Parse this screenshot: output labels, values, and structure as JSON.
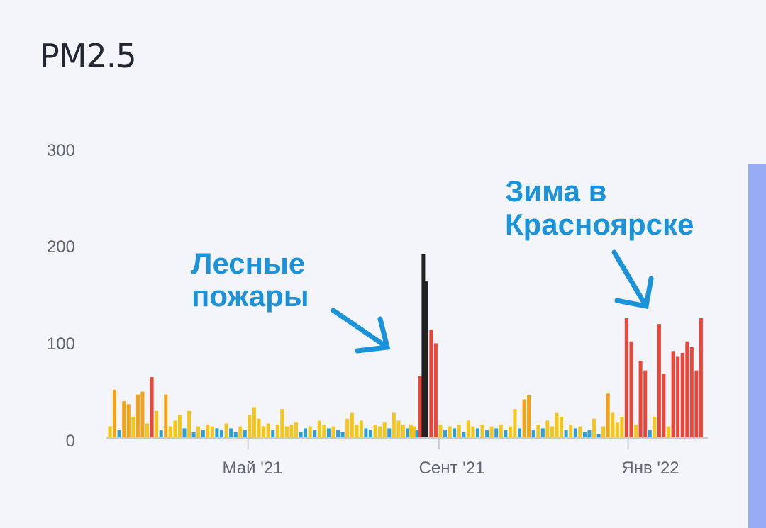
{
  "title": "PM2.5",
  "colors": {
    "good": "#2a9fd8",
    "moderate": "#f5c518",
    "sensitive": "#f5a312",
    "unhealthy": "#ef4438",
    "hazardous": "#222222",
    "annotation": "#1a93da",
    "axis": "#c6cad3",
    "tick_text": "#606570",
    "side_bar": "#98acf6"
  },
  "annotations": [
    {
      "lines": [
        "Лесные",
        "пожары"
      ]
    },
    {
      "lines": [
        "Зима в",
        "Красноярске"
      ]
    }
  ],
  "chart_data": {
    "type": "bar",
    "title": "PM2.5",
    "xlabel": "",
    "ylabel": "",
    "ylim": [
      0,
      300
    ],
    "yticks": [
      0,
      100,
      200,
      300
    ],
    "xticks": [
      "Май '21",
      "Сент '21",
      "Янв '22"
    ],
    "x_range": [
      "2021-02-01",
      "2022-02-20"
    ],
    "xtick_dates": [
      "2021-05-01",
      "2021-09-01",
      "2022-01-01"
    ],
    "grid": false,
    "legend": "none",
    "series": [
      {
        "x": [
          "2021-02-01",
          "2021-02-04",
          "2021-02-07",
          "2021-02-10",
          "2021-02-13",
          "2021-02-16",
          "2021-02-19",
          "2021-02-22",
          "2021-02-25",
          "2021-02-28",
          "2021-03-03",
          "2021-03-06",
          "2021-03-09",
          "2021-03-12",
          "2021-03-15",
          "2021-03-18",
          "2021-03-21",
          "2021-03-24",
          "2021-03-27",
          "2021-03-30",
          "2021-04-02",
          "2021-04-05",
          "2021-04-08",
          "2021-04-11",
          "2021-04-14",
          "2021-04-17",
          "2021-04-20",
          "2021-04-23",
          "2021-04-26",
          "2021-04-29",
          "2021-05-02",
          "2021-05-05",
          "2021-05-08",
          "2021-05-11",
          "2021-05-14",
          "2021-05-17",
          "2021-05-20",
          "2021-05-23",
          "2021-05-26",
          "2021-05-29",
          "2021-06-01",
          "2021-06-04",
          "2021-06-07",
          "2021-06-10",
          "2021-06-13",
          "2021-06-16",
          "2021-06-19",
          "2021-06-22",
          "2021-06-25",
          "2021-06-28",
          "2021-07-01",
          "2021-07-04",
          "2021-07-07",
          "2021-07-10",
          "2021-07-13",
          "2021-07-16",
          "2021-07-19",
          "2021-07-22",
          "2021-07-25",
          "2021-07-28",
          "2021-07-31",
          "2021-08-03",
          "2021-08-06",
          "2021-08-09",
          "2021-08-12",
          "2021-08-14",
          "2021-08-16",
          "2021-08-18",
          "2021-08-20",
          "2021-08-22",
          "2021-08-24",
          "2021-08-27",
          "2021-08-30",
          "2021-09-02",
          "2021-09-05",
          "2021-09-08",
          "2021-09-11",
          "2021-09-14",
          "2021-09-17",
          "2021-09-20",
          "2021-09-23",
          "2021-09-26",
          "2021-09-29",
          "2021-10-02",
          "2021-10-05",
          "2021-10-08",
          "2021-10-11",
          "2021-10-14",
          "2021-10-17",
          "2021-10-20",
          "2021-10-23",
          "2021-10-26",
          "2021-10-29",
          "2021-11-01",
          "2021-11-04",
          "2021-11-07",
          "2021-11-10",
          "2021-11-13",
          "2021-11-16",
          "2021-11-19",
          "2021-11-22",
          "2021-11-25",
          "2021-11-28",
          "2021-12-01",
          "2021-12-04",
          "2021-12-07",
          "2021-12-10",
          "2021-12-13",
          "2021-12-16",
          "2021-12-19",
          "2021-12-22",
          "2021-12-25",
          "2021-12-28",
          "2021-12-31",
          "2022-01-03",
          "2022-01-06",
          "2022-01-09",
          "2022-01-12",
          "2022-01-15",
          "2022-01-18",
          "2022-01-21",
          "2022-01-24",
          "2022-01-27",
          "2022-01-30",
          "2022-02-02",
          "2022-02-05",
          "2022-02-08",
          "2022-02-11",
          "2022-02-14",
          "2022-02-17"
        ],
        "values": [
          12,
          50,
          8,
          38,
          35,
          22,
          45,
          48,
          15,
          63,
          28,
          8,
          45,
          12,
          18,
          24,
          10,
          28,
          6,
          12,
          8,
          14,
          12,
          10,
          8,
          15,
          10,
          6,
          12,
          8,
          24,
          32,
          20,
          12,
          15,
          8,
          14,
          30,
          12,
          14,
          16,
          6,
          10,
          12,
          8,
          18,
          14,
          10,
          12,
          8,
          6,
          20,
          26,
          14,
          18,
          10,
          8,
          14,
          12,
          16,
          10,
          26,
          18,
          14,
          10,
          14,
          12,
          8,
          64,
          190,
          162,
          112,
          98,
          14,
          8,
          12,
          10,
          14,
          6,
          18,
          12,
          10,
          14,
          8,
          12,
          10,
          14,
          8,
          12,
          30,
          10,
          40,
          44,
          8,
          14,
          10,
          18,
          12,
          26,
          22,
          8,
          14,
          10,
          12,
          6,
          8,
          20,
          4,
          12,
          46,
          26,
          16,
          22,
          124,
          100,
          14,
          80,
          70,
          8,
          22,
          118,
          66,
          12,
          90,
          84,
          88,
          100,
          94,
          70,
          124
        ]
      }
    ]
  }
}
